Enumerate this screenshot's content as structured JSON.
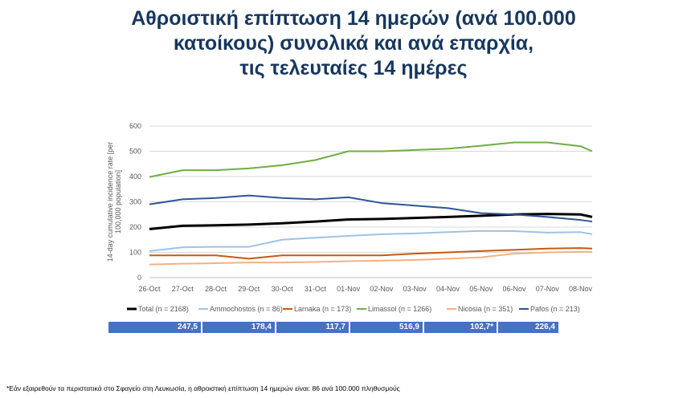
{
  "title": {
    "line1": "Αθροιστική επίπτωση 14 ημερών (ανά 100.000",
    "line2": "κατοίκους) συνολικά και ανά επαρχία,",
    "line3": "τις τελευταίες 14 ημέρες"
  },
  "chart_data": {
    "type": "line",
    "ylabel": "14-day cumulative incidence rate [per 100,000 population]",
    "xlabel": "",
    "ylim": [
      0,
      600
    ],
    "yticks": [
      0,
      100,
      200,
      300,
      400,
      500,
      600
    ],
    "grid": true,
    "legend": "bottom",
    "categories": [
      "26-Oct",
      "27-Oct",
      "28-Oct",
      "29-Oct",
      "30-Oct",
      "31-Oct",
      "01-Nov",
      "02-Nov",
      "03-Nov",
      "04-Nov",
      "05-Nov",
      "06-Nov",
      "07-Nov",
      "08-Nov"
    ],
    "x": [
      0,
      1,
      2,
      3,
      4,
      5,
      6,
      7,
      8,
      9,
      10,
      11,
      12,
      13,
      13.35
    ],
    "series": [
      {
        "name": "Total (n = 2168)",
        "color": "#000000",
        "width": 3,
        "values": [
          192,
          205,
          207,
          210,
          215,
          222,
          230,
          232,
          236,
          240,
          245,
          250,
          252,
          250,
          240
        ]
      },
      {
        "name": "Ammochostos (n = 86)",
        "color": "#9dc3e6",
        "width": 2,
        "values": [
          105,
          120,
          122,
          122,
          150,
          158,
          165,
          172,
          175,
          180,
          185,
          184,
          178,
          180,
          172
        ]
      },
      {
        "name": "Larnaka (n = 173)",
        "color": "#c55a11",
        "width": 2,
        "values": [
          88,
          88,
          88,
          75,
          88,
          88,
          88,
          88,
          95,
          100,
          105,
          110,
          115,
          117,
          115
        ]
      },
      {
        "name": "Limassol (n = 1266)",
        "color": "#70ad47",
        "width": 2,
        "values": [
          398,
          425,
          425,
          432,
          445,
          465,
          500,
          500,
          505,
          510,
          522,
          535,
          535,
          520,
          500
        ]
      },
      {
        "name": "Nicosia (n = 351)",
        "color": "#f4b183",
        "width": 2,
        "values": [
          52,
          55,
          57,
          60,
          60,
          62,
          65,
          67,
          70,
          75,
          80,
          95,
          100,
          102,
          102
        ]
      },
      {
        "name": "Pafos (n = 213)",
        "color": "#2e5597",
        "width": 2,
        "values": [
          290,
          310,
          315,
          325,
          315,
          310,
          318,
          295,
          285,
          275,
          255,
          250,
          240,
          228,
          222
        ]
      }
    ]
  },
  "summary_values": [
    "247,5",
    "178,4",
    "117,7",
    "516,9",
    "102,7*",
    "226,4"
  ],
  "footnote": "*Εάν εξαιρεθούν τα περιστατικά στο Σφαγείο στη Λευκωσία, η αθροιστική επίπτωση 14 ημερών είναι: 86 ανά 100.000 πληθυσμούς",
  "colors": {
    "title": "#17375e",
    "bar": "#4472c4"
  }
}
